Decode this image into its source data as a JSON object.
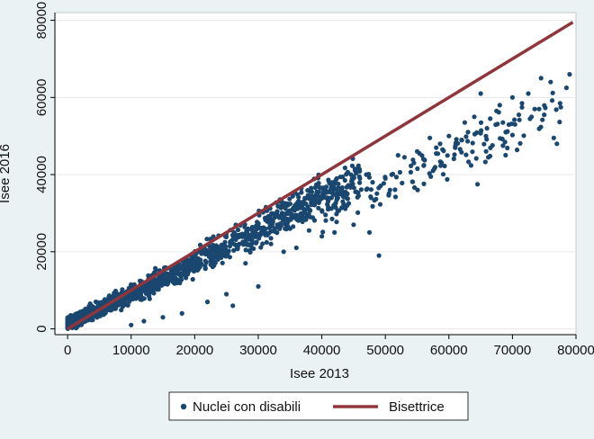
{
  "chart_data": {
    "type": "scatter",
    "xlabel": "Isee 2013",
    "ylabel": "Isee 2016",
    "xlim": [
      -2000,
      80000
    ],
    "ylim": [
      -1500,
      82000
    ],
    "xticks": [
      "0",
      "10000",
      "20000",
      "30000",
      "40000",
      "50000",
      "60000",
      "70000",
      "80000"
    ],
    "yticks": [
      "0",
      "20000",
      "40000",
      "60000",
      "80000"
    ],
    "grid": true,
    "legend_position": "bottom",
    "colors": {
      "points": "#1a476f",
      "line": "#90353b",
      "background": "#eaf2f3",
      "plot_background": "#ffffff",
      "grid": "#e6eaec"
    },
    "series": [
      {
        "name": "Nuclei con disabili",
        "type": "scatter",
        "points": [
          [
            65000,
            61000
          ],
          [
            67500,
            56500
          ],
          [
            68500,
            53500
          ],
          [
            70000,
            60000
          ],
          [
            71500,
            58500
          ],
          [
            72500,
            61000
          ],
          [
            73500,
            57000
          ],
          [
            74500,
            65000
          ],
          [
            75000,
            55500
          ],
          [
            76000,
            64000
          ],
          [
            76500,
            49500
          ],
          [
            77000,
            48000
          ],
          [
            77500,
            58500
          ],
          [
            78500,
            62500
          ],
          [
            79000,
            66000
          ],
          [
            73000,
            55000
          ],
          [
            69000,
            51000
          ],
          [
            66000,
            52000
          ],
          [
            64000,
            55000
          ],
          [
            62000,
            49000
          ],
          [
            60000,
            50000
          ],
          [
            58000,
            47000
          ],
          [
            56000,
            44000
          ],
          [
            52000,
            45000
          ],
          [
            50000,
            39000
          ],
          [
            48000,
            38000
          ],
          [
            46000,
            39000
          ],
          [
            62500,
            53500
          ],
          [
            59000,
            46500
          ],
          [
            57000,
            49500
          ],
          [
            55000,
            46000
          ],
          [
            53000,
            44500
          ],
          [
            51000,
            40000
          ],
          [
            44000,
            32000
          ],
          [
            49000,
            19000
          ],
          [
            42000,
            25000
          ],
          [
            38000,
            25500
          ],
          [
            34000,
            20000
          ],
          [
            30000,
            11000
          ],
          [
            26000,
            6000
          ],
          [
            25000,
            9000
          ],
          [
            22000,
            7000
          ],
          [
            18000,
            4000
          ],
          [
            15000,
            3000
          ],
          [
            12000,
            2000
          ],
          [
            10000,
            1000
          ],
          [
            64500,
            37500
          ],
          [
            57500,
            41000
          ],
          [
            54500,
            43000
          ],
          [
            47000,
            40000
          ],
          [
            43000,
            35000
          ],
          [
            41000,
            31000
          ],
          [
            39000,
            34000
          ],
          [
            37000,
            29000
          ],
          [
            35000,
            26000
          ],
          [
            33000,
            27000
          ],
          [
            31000,
            25000
          ],
          [
            29000,
            21000
          ],
          [
            27000,
            22000
          ],
          [
            28000,
            17000
          ],
          [
            32000,
            22000
          ],
          [
            36000,
            21000
          ],
          [
            40000,
            24000
          ],
          [
            45000,
            27000
          ],
          [
            47500,
            25000
          ],
          [
            61000,
            47000
          ],
          [
            63000,
            51000
          ],
          [
            66500,
            54500
          ],
          [
            68000,
            58000
          ],
          [
            71000,
            55500
          ]
        ]
      },
      {
        "name": "Bisettrice",
        "type": "line",
        "points": [
          [
            0,
            0
          ],
          [
            79500,
            79500
          ]
        ]
      }
    ]
  }
}
